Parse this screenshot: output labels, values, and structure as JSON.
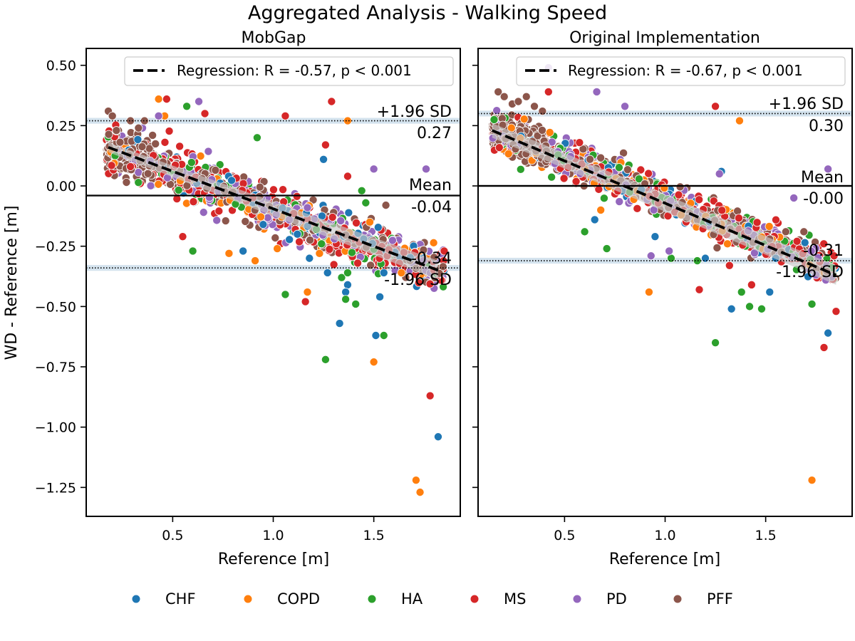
{
  "figure": {
    "suptitle": "Aggregated Analysis  - Walking Speed",
    "ylabel": "WD - Reference [m]"
  },
  "groups": [
    {
      "name": "CHF",
      "color": "#1f77b4"
    },
    {
      "name": "COPD",
      "color": "#ff7f0e"
    },
    {
      "name": "HA",
      "color": "#2ca02c"
    },
    {
      "name": "MS",
      "color": "#d62728"
    },
    {
      "name": "PD",
      "color": "#9467bd"
    },
    {
      "name": "PFF",
      "color": "#8c564b"
    }
  ],
  "chart_data": [
    {
      "type": "scatter",
      "title": "MobGap",
      "xlabel": "Reference [m]",
      "ylabel": "WD - Reference [m]",
      "xlim": [
        0.07,
        1.93
      ],
      "ylim": [
        -1.37,
        0.57
      ],
      "xticks": [
        {
          "v": 0.5,
          "label": "0.5"
        },
        {
          "v": 1.0,
          "label": "1.0"
        },
        {
          "v": 1.5,
          "label": "1.5"
        }
      ],
      "yticks": [
        {
          "v": 0.5,
          "label": "0.50"
        },
        {
          "v": 0.25,
          "label": "0.25"
        },
        {
          "v": 0.0,
          "label": "0.00"
        },
        {
          "v": -0.25,
          "label": "−0.25"
        },
        {
          "v": -0.5,
          "label": "−0.50"
        },
        {
          "v": -0.75,
          "label": "−0.75"
        },
        {
          "v": -1.0,
          "label": "−1.00"
        },
        {
          "v": -1.25,
          "label": "−1.25"
        }
      ],
      "legend": {
        "label": "Regression: R = -0.57, p < 0.001",
        "position": "upper right"
      },
      "regression": {
        "x": [
          0.18,
          1.82
        ],
        "y": [
          0.16,
          -0.35
        ],
        "ci_half_width": [
          0.02,
          0.04
        ]
      },
      "mean": {
        "value": -0.04,
        "label": "Mean",
        "value_label": "-0.04"
      },
      "upper_loa": {
        "value": 0.27,
        "label": "+1.96 SD",
        "value_label": "0.27"
      },
      "lower_loa": {
        "value": -0.34,
        "label": "-1.96 SD",
        "value_label": "-0.34"
      },
      "cloud": {
        "x_range": [
          0.17,
          1.85
        ],
        "center_intercept": 0.16,
        "slope": -0.31,
        "spread": 0.12
      },
      "series": [
        {
          "name": "CHF",
          "x": [
            1.25,
            1.33,
            1.51,
            1.53,
            1.55,
            1.37,
            1.36,
            1.82,
            0.85,
            1.18,
            1.27,
            0.95,
            1.45,
            1.12
          ],
          "y": [
            0.11,
            -0.57,
            -0.62,
            -0.46,
            -0.36,
            -0.41,
            -0.44,
            -1.04,
            -0.27,
            -0.3,
            -0.36,
            -0.16,
            -0.22,
            -0.2
          ]
        },
        {
          "name": "COPD",
          "x": [
            0.43,
            0.46,
            1.71,
            1.73,
            1.5,
            1.17,
            1.37,
            0.91,
            1.23,
            0.78,
            1.02,
            1.37,
            1.48
          ],
          "y": [
            0.36,
            0.29,
            -1.22,
            -1.27,
            -0.73,
            -0.44,
            0.27,
            -0.31,
            -0.28,
            -0.28,
            -0.26,
            0.27,
            -0.15
          ]
        },
        {
          "name": "HA",
          "x": [
            0.57,
            1.26,
            1.55,
            1.06,
            1.36,
            1.34,
            1.41,
            0.6,
            0.92,
            1.46,
            1.44,
            1.24,
            1.37
          ],
          "y": [
            0.33,
            -0.72,
            -0.62,
            -0.45,
            -0.47,
            -0.38,
            -0.49,
            -0.27,
            0.2,
            -0.07,
            -0.02,
            -0.24,
            -0.36
          ]
        },
        {
          "name": "MS",
          "x": [
            0.47,
            0.66,
            1.06,
            1.29,
            1.26,
            1.78,
            1.85,
            1.16,
            0.55,
            1.42,
            0.29,
            1.37
          ],
          "y": [
            0.36,
            0.3,
            0.29,
            0.35,
            0.17,
            -0.87,
            -0.27,
            -0.48,
            -0.21,
            -0.32,
            0.08,
            0.04
          ]
        },
        {
          "name": "PD",
          "x": [
            0.63,
            1.76,
            1.5,
            0.43,
            0.35,
            1.08,
            1.17
          ],
          "y": [
            0.35,
            0.07,
            0.07,
            0.29,
            0.24,
            -0.14,
            -0.09
          ]
        },
        {
          "name": "PFF",
          "x": [
            0.18,
            0.2,
            0.22,
            0.29,
            0.33,
            0.36,
            0.4,
            1.56
          ],
          "y": [
            0.31,
            0.29,
            0.23,
            0.27,
            0.24,
            0.27,
            0.21,
            -0.08
          ]
        }
      ]
    },
    {
      "type": "scatter",
      "title": "Original Implementation",
      "xlabel": "Reference [m]",
      "ylabel": "",
      "xlim": [
        0.07,
        1.93
      ],
      "ylim": [
        -1.37,
        0.57
      ],
      "xticks": [
        {
          "v": 0.5,
          "label": "0.5"
        },
        {
          "v": 1.0,
          "label": "1.0"
        },
        {
          "v": 1.5,
          "label": "1.5"
        }
      ],
      "yticks": [
        {
          "v": 0.5,
          "label": ""
        },
        {
          "v": 0.25,
          "label": ""
        },
        {
          "v": 0.0,
          "label": ""
        },
        {
          "v": -0.25,
          "label": ""
        },
        {
          "v": -0.5,
          "label": ""
        },
        {
          "v": -0.75,
          "label": ""
        },
        {
          "v": -1.0,
          "label": ""
        },
        {
          "v": -1.25,
          "label": ""
        }
      ],
      "legend": {
        "label": "Regression: R = -0.67, p < 0.001",
        "position": "upper right"
      },
      "regression": {
        "x": [
          0.14,
          1.85
        ],
        "y": [
          0.23,
          -0.37
        ],
        "ci_half_width": [
          0.03,
          0.04
        ]
      },
      "mean": {
        "value": -0.0,
        "label": "Mean",
        "value_label": "-0.00"
      },
      "upper_loa": {
        "value": 0.3,
        "label": "+1.96 SD",
        "value_label": "0.30"
      },
      "lower_loa": {
        "value": -0.31,
        "label": "-1.96 SD",
        "value_label": "-0.31"
      },
      "cloud": {
        "x_range": [
          0.14,
          1.85
        ],
        "center_intercept": 0.24,
        "slope": -0.34,
        "spread": 0.1
      },
      "series": [
        {
          "name": "CHF",
          "x": [
            1.33,
            1.81,
            1.52,
            1.2,
            0.95,
            1.28,
            0.65,
            1.55
          ],
          "y": [
            -0.51,
            -0.61,
            -0.44,
            -0.3,
            -0.21,
            0.06,
            -0.14,
            -0.3
          ]
        },
        {
          "name": "COPD",
          "x": [
            1.73,
            0.92,
            1.37,
            1.31,
            0.68,
            1.08
          ],
          "y": [
            -1.22,
            -0.44,
            0.27,
            -0.24,
            -0.1,
            -0.12
          ]
        },
        {
          "name": "HA",
          "x": [
            1.25,
            1.42,
            1.48,
            1.73,
            1.38,
            0.71,
            0.6,
            1.16,
            1.03
          ],
          "y": [
            -0.65,
            -0.5,
            -0.51,
            -0.49,
            -0.44,
            -0.26,
            -0.19,
            -0.31,
            -0.3
          ]
        },
        {
          "name": "MS",
          "x": [
            1.85,
            1.79,
            1.25,
            0.42,
            1.17,
            1.84,
            1.32,
            1.43
          ],
          "y": [
            -0.52,
            -0.67,
            0.33,
            0.39,
            -0.43,
            -0.29,
            -0.33,
            -0.41
          ]
        },
        {
          "name": "PD",
          "x": [
            0.42,
            0.66,
            1.81,
            0.93,
            1.64,
            1.27,
            0.8,
            1.02
          ],
          "y": [
            0.49,
            0.39,
            0.07,
            -0.29,
            -0.05,
            0.05,
            0.33,
            -0.27
          ]
        },
        {
          "name": "PFF",
          "x": [
            0.17,
            0.2,
            0.24,
            0.27,
            0.31,
            0.35,
            0.39,
            1.69,
            1.6,
            1.52
          ],
          "y": [
            0.39,
            0.37,
            0.34,
            0.35,
            0.37,
            0.33,
            0.31,
            -0.19,
            -0.19,
            -0.22
          ]
        }
      ]
    }
  ]
}
